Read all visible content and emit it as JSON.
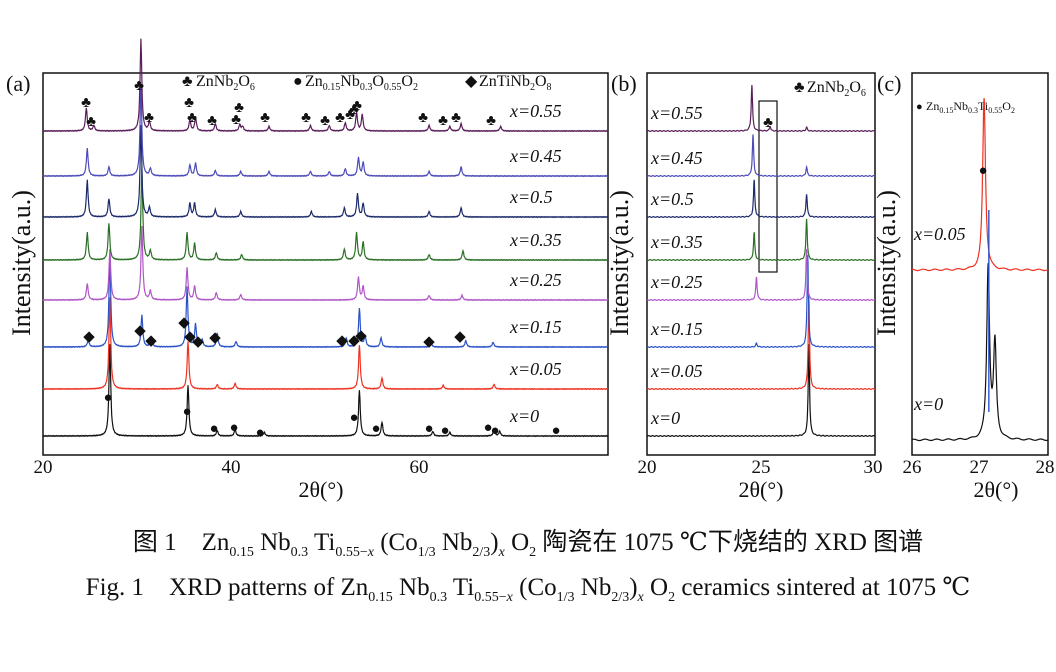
{
  "figure": {
    "caption_cn": "图 1　Zn0.15 Nb0.3 Ti0.55−x (Co1/3 Nb2/3)x O2 陶瓷在 1075 ℃下烧结的 XRD 图谱",
    "caption_en": "Fig. 1　XRD patterns of Zn0.15 Nb0.3 Ti0.55−x (Co1/3 Nb2/3)x O2 ceramics sintered at 1075 ℃"
  },
  "colors": {
    "x=0": "#111111",
    "x=0.05": "#ee3322",
    "x=0.15": "#2a52c8",
    "x=0.25": "#b056c8",
    "x=0.35": "#2c6f26",
    "x=0.5": "#1c2a6a",
    "x=0.45": "#4d4bb8",
    "x=0.55": "#5a1e5a"
  },
  "chart_data": [
    {
      "id": "a",
      "type": "line",
      "panel_label": "(a)",
      "xlabel": "2θ(°)",
      "ylabel": "Intensity(a.u.)",
      "xlim": [
        20,
        80
      ],
      "xticks": [
        "20",
        "40",
        "60"
      ],
      "legend": [
        {
          "marker": "♣",
          "label": "ZnNb2O6"
        },
        {
          "marker": "●",
          "label": "Zn0.15Nb0.3O0.55O2"
        },
        {
          "marker": "◆",
          "label": "ZnTiNb2O8"
        }
      ],
      "series": [
        {
          "name": "x=0",
          "peaks": [
            [
              27.1,
              1.0
            ],
            [
              35.4,
              0.55
            ],
            [
              38.5,
              0.06
            ],
            [
              40.4,
              0.07
            ],
            [
              43.5,
              0.04
            ],
            [
              53.6,
              0.5
            ],
            [
              56.0,
              0.15
            ],
            [
              61.4,
              0.05
            ],
            [
              63.2,
              0.04
            ],
            [
              67.9,
              0.07
            ],
            [
              68.5,
              0.05
            ]
          ]
        },
        {
          "name": "x=0.05",
          "peaks": [
            [
              27.1,
              1.0
            ],
            [
              35.4,
              0.52
            ],
            [
              38.5,
              0.05
            ],
            [
              40.4,
              0.06
            ],
            [
              53.6,
              0.48
            ],
            [
              56.0,
              0.12
            ],
            [
              62.5,
              0.04
            ],
            [
              67.9,
              0.05
            ]
          ]
        },
        {
          "name": "x=0.15",
          "peaks": [
            [
              24.8,
              0.08
            ],
            [
              27.1,
              1.0
            ],
            [
              30.5,
              0.35
            ],
            [
              31.5,
              0.1
            ],
            [
              35.3,
              0.65
            ],
            [
              36.2,
              0.25
            ],
            [
              36.9,
              0.08
            ],
            [
              38.5,
              0.15
            ],
            [
              40.5,
              0.06
            ],
            [
              52.2,
              0.1
            ],
            [
              53.6,
              0.42
            ],
            [
              54.2,
              0.12
            ],
            [
              55.9,
              0.1
            ],
            [
              61.2,
              0.05
            ],
            [
              64.9,
              0.07
            ],
            [
              67.8,
              0.05
            ]
          ]
        },
        {
          "name": "x=0.25",
          "peaks": [
            [
              24.7,
              0.18
            ],
            [
              27.1,
              0.55
            ],
            [
              30.5,
              0.8
            ],
            [
              31.4,
              0.1
            ],
            [
              35.3,
              0.35
            ],
            [
              36.1,
              0.15
            ],
            [
              38.4,
              0.08
            ],
            [
              41.0,
              0.06
            ],
            [
              53.5,
              0.25
            ],
            [
              54.0,
              0.15
            ],
            [
              61.0,
              0.05
            ],
            [
              64.5,
              0.05
            ]
          ]
        },
        {
          "name": "x=0.35",
          "peaks": [
            [
              24.7,
              0.3
            ],
            [
              27.0,
              0.4
            ],
            [
              30.5,
              1.0
            ],
            [
              31.4,
              0.1
            ],
            [
              35.3,
              0.3
            ],
            [
              36.1,
              0.18
            ],
            [
              38.4,
              0.08
            ],
            [
              41.1,
              0.06
            ],
            [
              52.0,
              0.12
            ],
            [
              53.3,
              0.3
            ],
            [
              54.0,
              0.2
            ],
            [
              61.0,
              0.06
            ],
            [
              64.6,
              0.1
            ]
          ]
        },
        {
          "name": "x=0.5",
          "peaks": [
            [
              24.7,
              0.4
            ],
            [
              27.0,
              0.2
            ],
            [
              30.4,
              1.0
            ],
            [
              31.3,
              0.1
            ],
            [
              35.6,
              0.15
            ],
            [
              36.1,
              0.15
            ],
            [
              38.3,
              0.08
            ],
            [
              41.0,
              0.06
            ],
            [
              48.5,
              0.06
            ],
            [
              52.0,
              0.1
            ],
            [
              53.4,
              0.25
            ],
            [
              54.0,
              0.15
            ],
            [
              61.0,
              0.06
            ],
            [
              64.4,
              0.1
            ]
          ]
        },
        {
          "name": "x=0.45",
          "peaks": [
            [
              24.7,
              0.3
            ],
            [
              27.0,
              0.1
            ],
            [
              30.4,
              1.0
            ],
            [
              31.4,
              0.08
            ],
            [
              35.6,
              0.12
            ],
            [
              36.2,
              0.14
            ],
            [
              38.3,
              0.06
            ],
            [
              41.0,
              0.05
            ],
            [
              44.0,
              0.05
            ],
            [
              48.4,
              0.05
            ],
            [
              50.4,
              0.05
            ],
            [
              52.1,
              0.08
            ],
            [
              53.5,
              0.2
            ],
            [
              54.0,
              0.15
            ],
            [
              61.0,
              0.05
            ],
            [
              64.4,
              0.1
            ]
          ]
        },
        {
          "name": "x=0.55",
          "peaks": [
            [
              24.6,
              0.25
            ],
            [
              25.4,
              0.06
            ],
            [
              30.4,
              1.0
            ],
            [
              31.3,
              0.1
            ],
            [
              35.6,
              0.12
            ],
            [
              36.2,
              0.15
            ],
            [
              38.3,
              0.08
            ],
            [
              40.9,
              0.07
            ],
            [
              41.2,
              0.05
            ],
            [
              44.0,
              0.05
            ],
            [
              48.4,
              0.06
            ],
            [
              50.4,
              0.06
            ],
            [
              52.1,
              0.09
            ],
            [
              53.3,
              0.2
            ],
            [
              53.9,
              0.18
            ],
            [
              61.0,
              0.06
            ],
            [
              63.2,
              0.05
            ],
            [
              64.4,
              0.08
            ],
            [
              68.6,
              0.05
            ]
          ]
        }
      ]
    },
    {
      "id": "b",
      "type": "line",
      "panel_label": "(b)",
      "xlabel": "2θ(°)",
      "ylabel": "Intensity(a.u.)",
      "xlim": [
        20,
        30
      ],
      "xticks": [
        "20",
        "25",
        "30"
      ],
      "legend": [
        {
          "marker": "♣",
          "label": "ZnNb2O6"
        }
      ],
      "series": [
        {
          "name": "x=0",
          "peaks": [
            [
              27.1,
              1.0
            ]
          ]
        },
        {
          "name": "x=0.05",
          "peaks": [
            [
              27.1,
              1.0
            ]
          ]
        },
        {
          "name": "x=0.15",
          "peaks": [
            [
              24.8,
              0.04
            ],
            [
              27.05,
              1.0
            ]
          ]
        },
        {
          "name": "x=0.25",
          "peaks": [
            [
              24.8,
              0.25
            ],
            [
              27.0,
              0.55
            ]
          ]
        },
        {
          "name": "x=0.35",
          "peaks": [
            [
              24.7,
              0.3
            ],
            [
              27.0,
              0.45
            ]
          ]
        },
        {
          "name": "x=0.5",
          "peaks": [
            [
              24.7,
              0.4
            ],
            [
              27.0,
              0.25
            ]
          ]
        },
        {
          "name": "x=0.45",
          "peaks": [
            [
              24.65,
              0.45
            ],
            [
              27.0,
              0.1
            ]
          ]
        },
        {
          "name": "x=0.55",
          "peaks": [
            [
              24.6,
              0.5
            ],
            [
              25.4,
              0.05
            ],
            [
              27.0,
              0.04
            ]
          ]
        }
      ]
    },
    {
      "id": "c",
      "type": "line",
      "panel_label": "(c)",
      "xlabel": "2θ(°)",
      "ylabel": "",
      "xlim": [
        26,
        28
      ],
      "xticks": [
        "26",
        "27",
        "28"
      ],
      "legend": [
        {
          "marker": "●",
          "label": "Zn0.15Nb0.3Ti0.55O2"
        }
      ],
      "series": [
        {
          "name": "x=0",
          "peaks": [
            [
              27.12,
              1.0
            ],
            [
              27.22,
              0.55
            ]
          ]
        },
        {
          "name": "x=0.05",
          "peaks": [
            [
              27.06,
              1.0
            ]
          ]
        }
      ],
      "reference_line_x": 27.13
    }
  ]
}
